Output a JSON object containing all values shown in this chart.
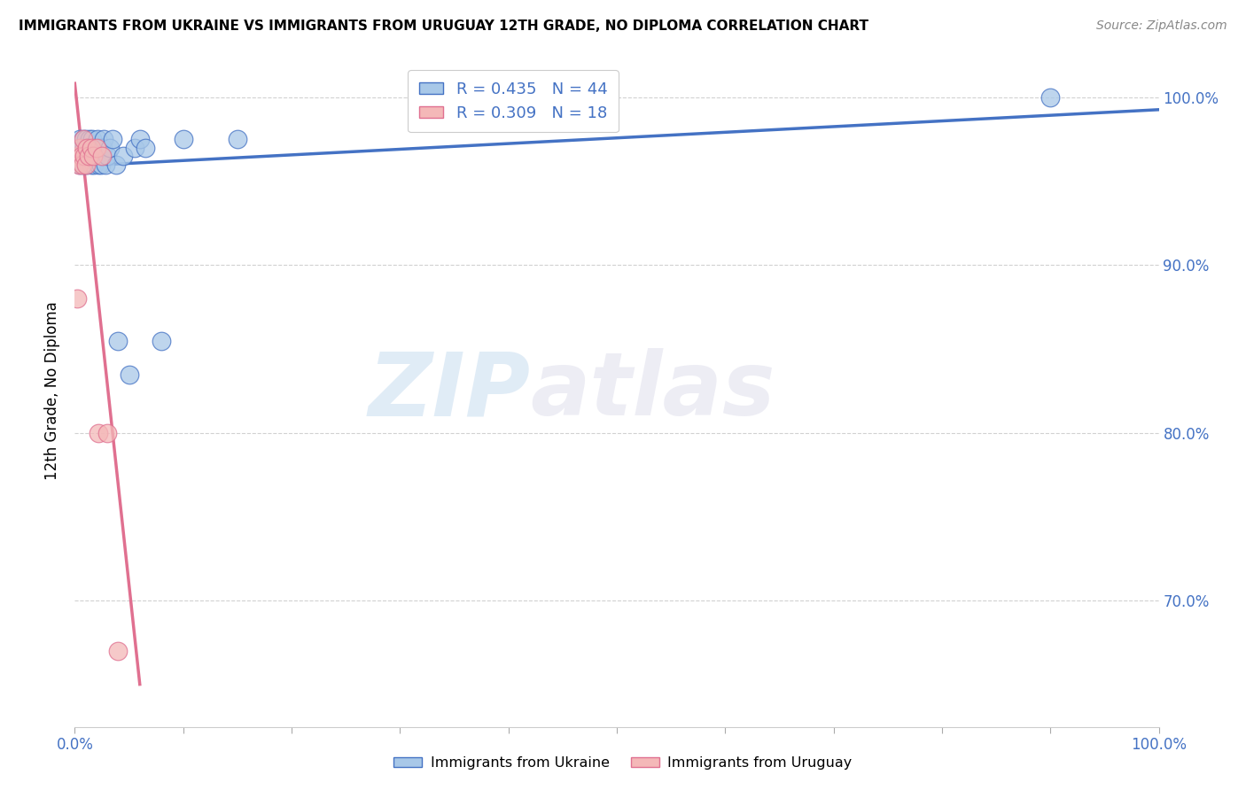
{
  "title": "IMMIGRANTS FROM UKRAINE VS IMMIGRANTS FROM URUGUAY 12TH GRADE, NO DIPLOMA CORRELATION CHART",
  "source": "Source: ZipAtlas.com",
  "ylabel": "12th Grade, No Diploma",
  "xlim": [
    0.0,
    1.0
  ],
  "ylim": [
    0.625,
    1.025
  ],
  "yticks": [
    0.7,
    0.8,
    0.9,
    1.0
  ],
  "ytick_labels": [
    "70.0%",
    "80.0%",
    "90.0%",
    "100.0%"
  ],
  "ukraine_R": 0.435,
  "ukraine_N": 44,
  "uruguay_R": 0.309,
  "uruguay_N": 18,
  "ukraine_color": "#a8c8e8",
  "uruguay_color": "#f4b8b8",
  "ukraine_line_color": "#4472c4",
  "uruguay_line_color": "#e07090",
  "background_color": "#ffffff",
  "watermark_zip": "ZIP",
  "watermark_atlas": "atlas",
  "ukraine_x": [
    0.003,
    0.004,
    0.005,
    0.005,
    0.006,
    0.007,
    0.008,
    0.008,
    0.009,
    0.01,
    0.01,
    0.011,
    0.012,
    0.013,
    0.014,
    0.015,
    0.016,
    0.016,
    0.017,
    0.018,
    0.019,
    0.02,
    0.021,
    0.022,
    0.023,
    0.024,
    0.025,
    0.026,
    0.027,
    0.028,
    0.03,
    0.032,
    0.035,
    0.038,
    0.04,
    0.045,
    0.05,
    0.055,
    0.06,
    0.065,
    0.08,
    0.1,
    0.15,
    0.9
  ],
  "ukraine_y": [
    0.97,
    0.965,
    0.975,
    0.96,
    0.97,
    0.965,
    0.975,
    0.96,
    0.97,
    0.965,
    0.975,
    0.96,
    0.97,
    0.965,
    0.975,
    0.96,
    0.97,
    0.975,
    0.965,
    0.96,
    0.97,
    0.965,
    0.975,
    0.96,
    0.97,
    0.96,
    0.965,
    0.97,
    0.975,
    0.96,
    0.965,
    0.97,
    0.975,
    0.96,
    0.855,
    0.965,
    0.835,
    0.97,
    0.975,
    0.97,
    0.855,
    0.975,
    0.975,
    1.0
  ],
  "uruguay_x": [
    0.002,
    0.003,
    0.004,
    0.005,
    0.006,
    0.007,
    0.008,
    0.009,
    0.01,
    0.011,
    0.013,
    0.015,
    0.017,
    0.02,
    0.022,
    0.025,
    0.03,
    0.04
  ],
  "uruguay_y": [
    0.88,
    0.965,
    0.96,
    0.97,
    0.965,
    0.96,
    0.975,
    0.965,
    0.96,
    0.97,
    0.965,
    0.97,
    0.965,
    0.97,
    0.8,
    0.965,
    0.8,
    0.67
  ]
}
